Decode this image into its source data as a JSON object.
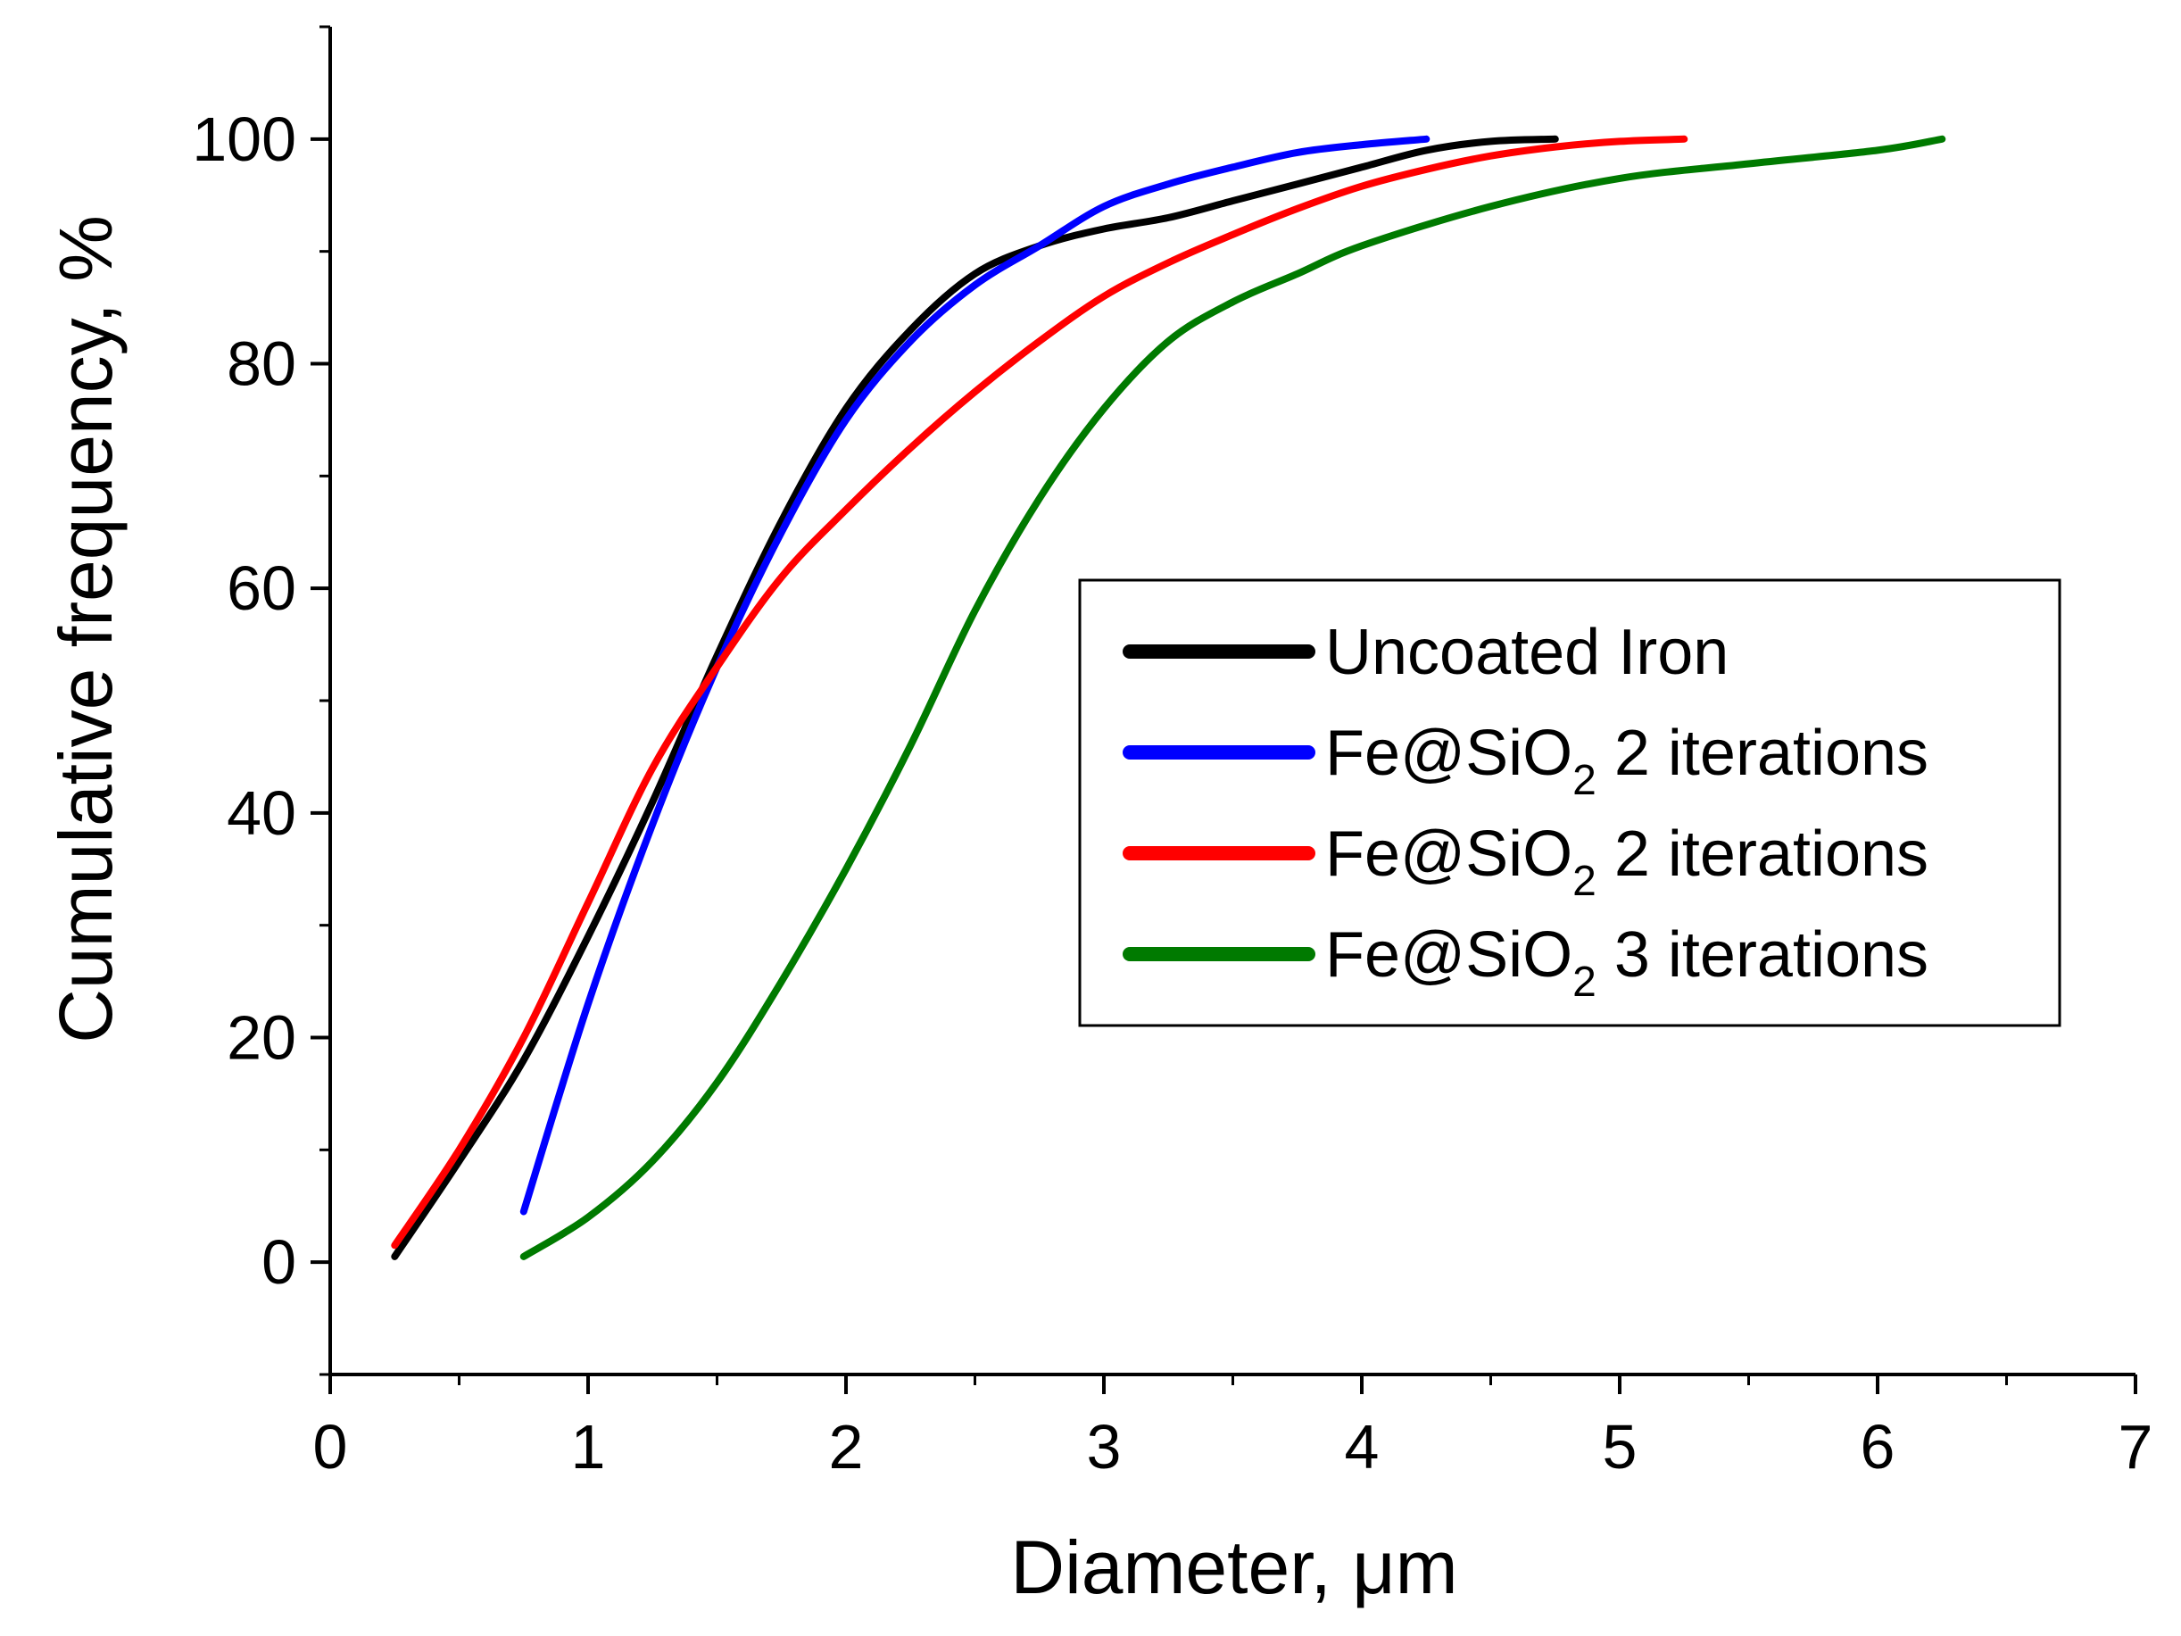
{
  "chart_data": {
    "type": "line",
    "title": "",
    "xlabel": "Diameter, μm",
    "ylabel": "Cumulative frequency, %",
    "xlim": [
      0,
      7
    ],
    "ylim": [
      -10,
      110
    ],
    "x_ticks": [
      {
        "value": 0,
        "label": "0"
      },
      {
        "value": 1,
        "label": "1"
      },
      {
        "value": 2,
        "label": "2"
      },
      {
        "value": 3,
        "label": "3"
      },
      {
        "value": 4,
        "label": "4"
      },
      {
        "value": 5,
        "label": "5"
      },
      {
        "value": 6,
        "label": "6"
      },
      {
        "value": 7,
        "label": "7"
      }
    ],
    "y_ticks": [
      {
        "value": 0,
        "label": "0"
      },
      {
        "value": 20,
        "label": "20"
      },
      {
        "value": 40,
        "label": "40"
      },
      {
        "value": 60,
        "label": "60"
      },
      {
        "value": 80,
        "label": "80"
      },
      {
        "value": 100,
        "label": "100"
      }
    ],
    "grid": false,
    "legend_position": "center-right",
    "series": [
      {
        "name": "Uncoated Iron",
        "legend": {
          "base": "Uncoated Iron",
          "sub": "",
          "suffix": ""
        },
        "color": "#000000",
        "x": [
          0.25,
          0.5,
          0.75,
          1.0,
          1.25,
          1.5,
          1.75,
          2.0,
          2.25,
          2.5,
          2.75,
          3.0,
          3.25,
          3.5,
          3.75,
          4.0,
          4.25,
          4.5,
          4.75
        ],
        "y": [
          0.5,
          9,
          18,
          29,
          41,
          54,
          66,
          76,
          83,
          88,
          90.5,
          92,
          93,
          94.5,
          96,
          97.5,
          99,
          99.8,
          100
        ]
      },
      {
        "name": "Fe@SiO2 2 iterations",
        "legend": {
          "base": "Fe@SiO",
          "sub": "2",
          "suffix": " 2 iterations"
        },
        "color": "#0000ff",
        "x": [
          0.75,
          1.0,
          1.25,
          1.5,
          1.75,
          2.0,
          2.25,
          2.5,
          2.75,
          3.0,
          3.25,
          3.5,
          3.75,
          4.0,
          4.25
        ],
        "y": [
          4.5,
          23,
          39,
          53,
          65,
          75,
          82,
          87,
          90.5,
          94,
          96,
          97.5,
          98.8,
          99.5,
          100
        ]
      },
      {
        "name": "Fe@SiO2 2 iterations",
        "legend": {
          "base": "Fe@SiO",
          "sub": "2",
          "suffix": " 2 iterations"
        },
        "color": "#ff0000",
        "x": [
          0.25,
          0.5,
          0.75,
          1.0,
          1.25,
          1.5,
          1.75,
          2.0,
          2.25,
          2.5,
          2.75,
          3.0,
          3.25,
          3.5,
          3.75,
          4.0,
          4.25,
          4.5,
          4.75,
          5.0,
          5.25
        ],
        "y": [
          1.5,
          10,
          20,
          32,
          44,
          53,
          61,
          67,
          72.5,
          77.5,
          82,
          86,
          89,
          91.5,
          93.8,
          95.8,
          97.3,
          98.5,
          99.3,
          99.8,
          100
        ]
      },
      {
        "name": "Fe@SiO2 3 iterations",
        "legend": {
          "base": "Fe@SiO",
          "sub": "2",
          "suffix": " 3 iterations"
        },
        "color": "#007a00",
        "x": [
          0.75,
          1.0,
          1.25,
          1.5,
          1.75,
          2.0,
          2.25,
          2.5,
          2.75,
          3.0,
          3.25,
          3.5,
          3.75,
          4.0,
          4.5,
          5.0,
          5.5,
          6.0,
          6.25
        ],
        "y": [
          0.5,
          4,
          9,
          16,
          25,
          35,
          46,
          58,
          68,
          76,
          82,
          85.5,
          88,
          90.5,
          94,
          96.5,
          97.8,
          99,
          100
        ]
      }
    ]
  }
}
